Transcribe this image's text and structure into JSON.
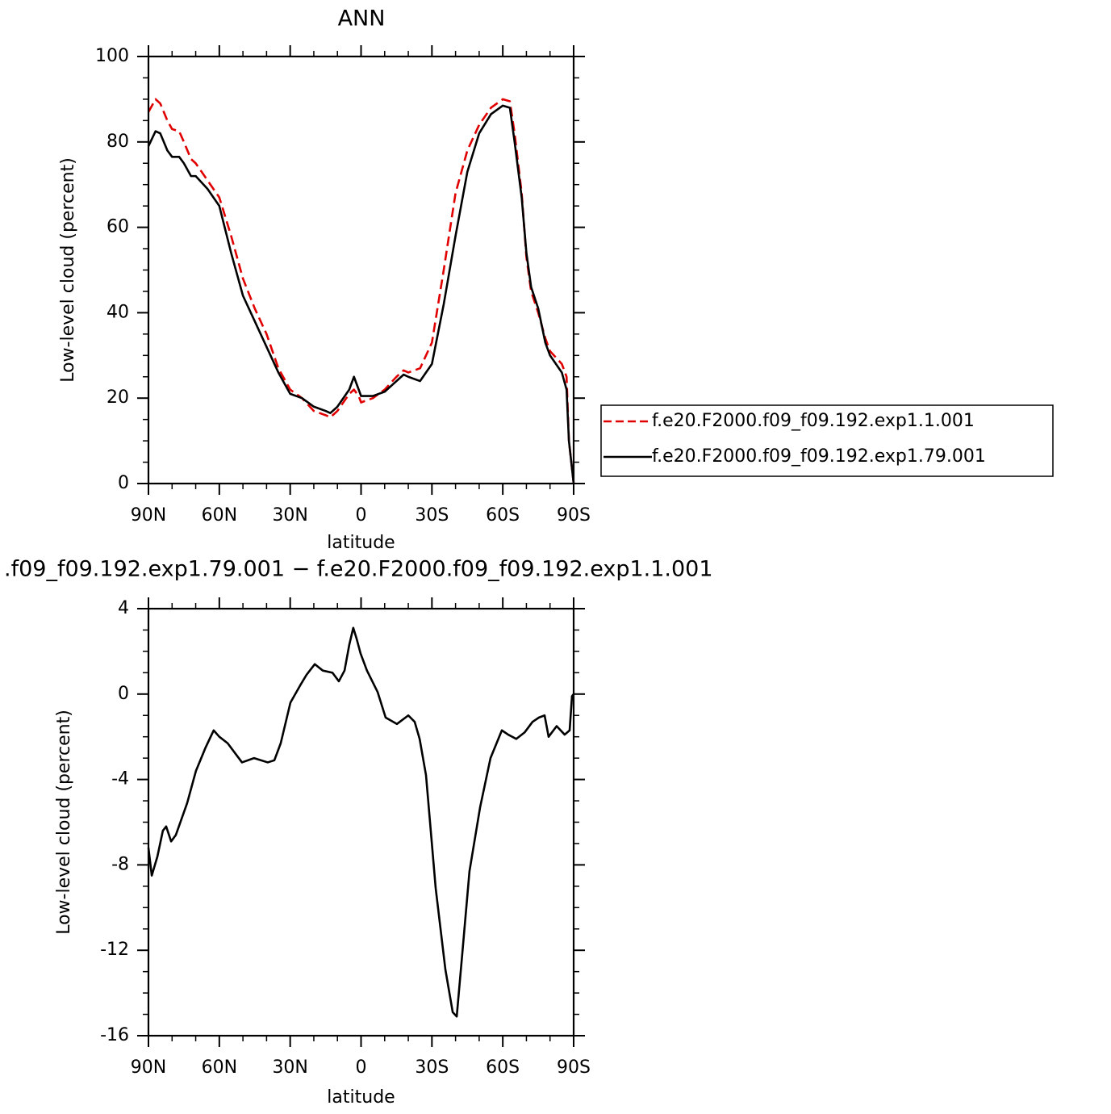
{
  "chart_data": [
    {
      "type": "line",
      "title": "ANN",
      "xlabel": "latitude",
      "ylabel": "Low-level cloud (percent)",
      "x": [
        90,
        87,
        85,
        82,
        80,
        77,
        75,
        72,
        70,
        65,
        60,
        55,
        50,
        45,
        40,
        35,
        30,
        25,
        20,
        15,
        13,
        10,
        5,
        3,
        1,
        0,
        -5,
        -10,
        -15,
        -18,
        -20,
        -25,
        -30,
        -35,
        -40,
        -45,
        -50,
        -55,
        -60,
        -63,
        -65,
        -68,
        -70,
        -72,
        -75,
        -78,
        -80,
        -85,
        -87,
        -88,
        -90
      ],
      "series": [
        {
          "name": "f.e20.F2000.f09_f09.192.exp1.1.001",
          "color": "#e00000",
          "dashed": true,
          "values": [
            87,
            90,
            89,
            85,
            83,
            82.5,
            80,
            76,
            75,
            71,
            67,
            58,
            48,
            41,
            35,
            27,
            22,
            20,
            17,
            16,
            15.5,
            17,
            21,
            22,
            20.5,
            19,
            20,
            22,
            25,
            26.5,
            26,
            27,
            33,
            50,
            68,
            78,
            84,
            88,
            90,
            89.5,
            82,
            68,
            53,
            45,
            40,
            34,
            31,
            28,
            25,
            10,
            0
          ]
        },
        {
          "name": "f.e20.F2000.f09_f09.192.exp1.79.001",
          "color": "#000000",
          "dashed": false,
          "values": [
            79,
            82.5,
            82,
            78,
            76.5,
            76.5,
            75,
            72,
            72,
            69,
            65,
            54,
            44,
            38,
            32,
            26,
            21,
            20,
            18,
            17,
            16.5,
            18,
            22,
            25,
            22,
            20.5,
            20.5,
            21.5,
            24,
            25.5,
            25,
            24,
            28,
            42,
            58,
            73,
            82,
            86.5,
            88.5,
            88,
            80,
            67,
            54,
            46,
            41,
            33,
            30,
            26,
            22,
            10,
            0
          ]
        }
      ],
      "xlim": [
        90,
        -90
      ],
      "xticks": [
        {
          "value": 90,
          "label": "90N"
        },
        {
          "value": 60,
          "label": "60N"
        },
        {
          "value": 30,
          "label": "30N"
        },
        0,
        {
          "value": -30,
          "label": "30S"
        },
        {
          "value": -60,
          "label": "60S"
        },
        {
          "value": -90,
          "label": "90S"
        }
      ],
      "xminorticks": [
        80,
        70,
        50,
        40,
        20,
        10,
        -10,
        -20,
        -40,
        -50,
        -70,
        -80
      ],
      "ylim": [
        0,
        100
      ],
      "yticks": [
        0,
        20,
        40,
        60,
        80,
        100
      ],
      "yminorticks": [
        5,
        10,
        15,
        25,
        30,
        35,
        45,
        50,
        55,
        65,
        70,
        75,
        85,
        90,
        95
      ],
      "legend": "right"
    },
    {
      "type": "line",
      "title": ".f09_f09.192.exp1.79.001 − f.e20.F2000.f09_f09.192.exp1.1.001",
      "xlabel": "latitude",
      "ylabel": "Low-level cloud (percent)",
      "x": [
        90,
        88.6,
        86.2,
        83.9,
        82.5,
        80.4,
        78.4,
        73.6,
        69.9,
        65.8,
        62.4,
        60,
        56.5,
        50.4,
        45.3,
        39.5,
        36.7,
        34,
        29.9,
        25.8,
        23.1,
        19.6,
        16.2,
        12.1,
        9.4,
        7,
        5,
        3.3,
        1.9,
        0.2,
        -2.5,
        -7,
        -10.4,
        -15.2,
        -20,
        -22.7,
        -24.8,
        -27.5,
        -31.6,
        -35.7,
        -38.8,
        -40.5,
        -42.9,
        -45.9,
        -50.4,
        -54.8,
        -59.6,
        -62.3,
        -65.7,
        -69.2,
        -72.6,
        -75.3,
        -77.7,
        -79.4,
        -82.8,
        -86.2,
        -88.3,
        -89.3,
        -90
      ],
      "series": [
        {
          "color": "#000000",
          "dashed": false,
          "values": [
            -7.2,
            -8.5,
            -7.6,
            -6.4,
            -6.2,
            -6.9,
            -6.6,
            -5.1,
            -3.6,
            -2.5,
            -1.7,
            -2.0,
            -2.3,
            -3.2,
            -3.0,
            -3.2,
            -3.1,
            -2.3,
            -0.4,
            0.4,
            0.9,
            1.4,
            1.1,
            1.0,
            0.6,
            1.1,
            2.3,
            3.1,
            2.6,
            1.9,
            1.1,
            0.1,
            -1.1,
            -1.4,
            -1.0,
            -1.3,
            -2.1,
            -3.8,
            -9.1,
            -12.9,
            -14.9,
            -15.1,
            -12.1,
            -8.3,
            -5.3,
            -3.0,
            -1.7,
            -1.9,
            -2.1,
            -1.8,
            -1.3,
            -1.1,
            -1.0,
            -2.0,
            -1.5,
            -1.9,
            -1.7,
            -0.1,
            0.0
          ]
        }
      ],
      "xlim": [
        90,
        -90
      ],
      "xticks": [
        {
          "value": 90,
          "label": "90N"
        },
        {
          "value": 60,
          "label": "60N"
        },
        {
          "value": 30,
          "label": "30N"
        },
        0,
        {
          "value": -30,
          "label": "30S"
        },
        {
          "value": -60,
          "label": "60S"
        },
        {
          "value": -90,
          "label": "90S"
        }
      ],
      "xminorticks": [
        80,
        70,
        50,
        40,
        20,
        10,
        -10,
        -20,
        -40,
        -50,
        -70,
        -80
      ],
      "ylim": [
        -16,
        4
      ],
      "yticks": [
        -16,
        -12,
        -8,
        -4,
        0,
        4
      ],
      "yminorticks": [
        -15,
        -14,
        -13,
        -11,
        -10,
        -9,
        -7,
        -6,
        -5,
        -3,
        -2,
        -1,
        1,
        2,
        3
      ]
    }
  ]
}
